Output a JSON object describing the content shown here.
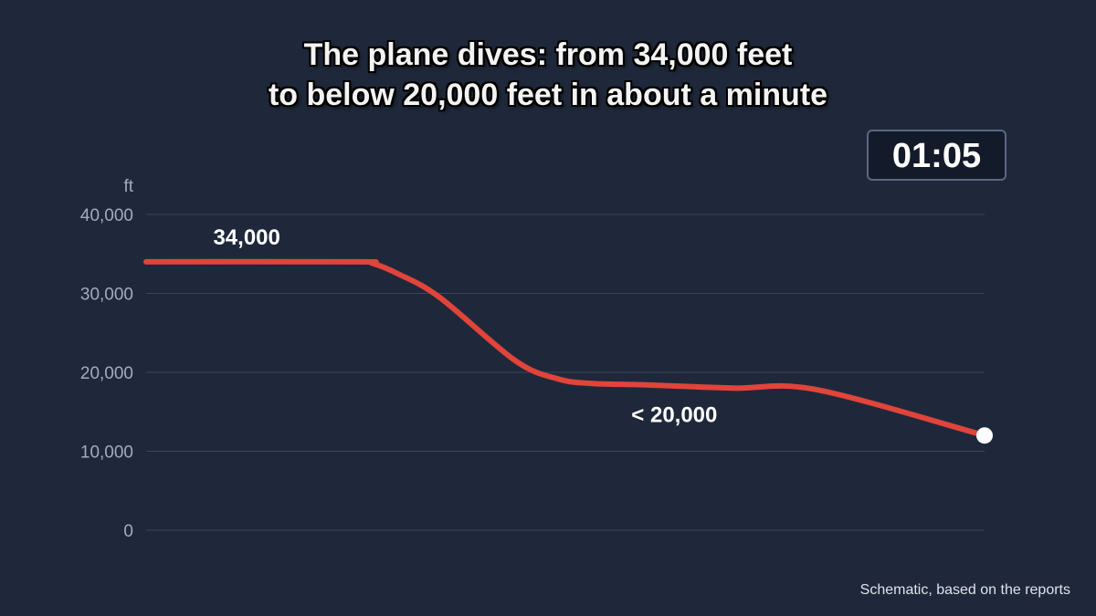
{
  "title": {
    "line1": "The plane dives: from 34,000 feet",
    "line2": "to below 20,000 feet in about a minute"
  },
  "timer": "01:05",
  "footer_note": "Schematic, based on the reports",
  "colors": {
    "background": "#1f283a",
    "line": "#e0443a",
    "grid": "#3a455c",
    "tick_text": "#a3abbc",
    "end_marker": "#ffffff"
  },
  "chart_data": {
    "type": "line",
    "title": "The plane dives: from 34,000 feet to below 20,000 feet in about a minute",
    "xlabel": "",
    "ylabel": "ft",
    "ylim": [
      0,
      40000
    ],
    "xlim": [
      0,
      1
    ],
    "y_ticks": [
      0,
      10000,
      20000,
      30000,
      40000
    ],
    "y_tick_labels": [
      "0",
      "10,000",
      "20,000",
      "30,000",
      "40,000"
    ],
    "grid": true,
    "x_axis_shown": false,
    "series": [
      {
        "x": [
          0,
          0.25,
          0.27,
          0.3,
          0.35,
          0.44,
          0.49,
          0.53,
          0.6,
          0.7,
          0.8,
          1.0
        ],
        "y": [
          34000,
          34000,
          33800,
          32500,
          29500,
          21500,
          19200,
          18600,
          18400,
          18000,
          17800,
          12000
        ]
      }
    ],
    "annotations": [
      {
        "text": "34,000",
        "x": 0.12,
        "y": 36200
      },
      {
        "text": "< 20,000",
        "x": 0.63,
        "y": 13700
      }
    ],
    "end_marker": {
      "x": 1.0,
      "y": 12000
    }
  }
}
